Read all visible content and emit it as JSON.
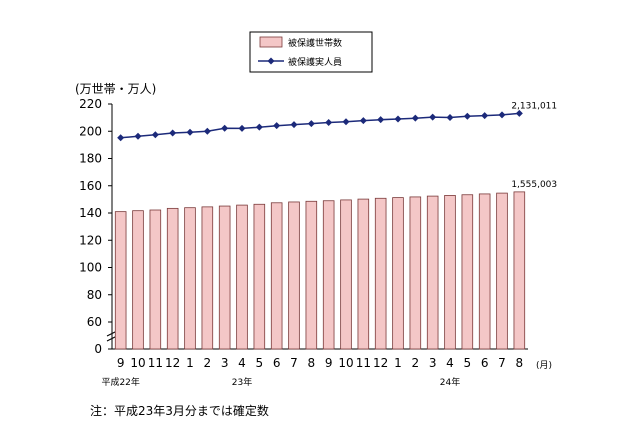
{
  "chart_data": {
    "type": "bar",
    "ylabel": "(万世帯・万人)",
    "ylim": [
      0,
      220
    ],
    "y_ticks": [
      0,
      60,
      80,
      100,
      120,
      140,
      160,
      180,
      200,
      220
    ],
    "axis_break": true,
    "xunit": "(月)",
    "categories": [
      "9",
      "10",
      "11",
      "12",
      "1",
      "2",
      "3",
      "4",
      "5",
      "6",
      "7",
      "8",
      "9",
      "10",
      "11",
      "12",
      "1",
      "2",
      "3",
      "4",
      "5",
      "6",
      "7",
      "8"
    ],
    "era_labels": [
      {
        "text": "平成22年",
        "at_index": 0
      },
      {
        "text": "23年",
        "at_index": 7
      },
      {
        "text": "24年",
        "at_index": 19
      }
    ],
    "series": [
      {
        "name": "被保護世帯数",
        "kind": "bar",
        "color": "#f4c7c7",
        "edge_color": "#7a3a3a",
        "values": [
          141.0,
          141.7,
          142.2,
          143.4,
          143.9,
          144.5,
          145.1,
          145.8,
          146.4,
          147.5,
          148.1,
          148.6,
          149.0,
          149.6,
          150.2,
          150.8,
          151.3,
          151.8,
          152.4,
          152.9,
          153.4,
          154.0,
          154.6,
          155.5
        ]
      },
      {
        "name": "被保護実人員",
        "kind": "line",
        "color": "#1c2a7a",
        "values": [
          195.2,
          196.3,
          197.4,
          198.7,
          199.3,
          200.0,
          202.2,
          202.1,
          203.0,
          204.1,
          204.9,
          205.6,
          206.4,
          207.0,
          207.8,
          208.5,
          209.0,
          209.6,
          210.4,
          210.1,
          211.0,
          211.5,
          212.0,
          213.1
        ]
      }
    ],
    "data_labels": {
      "bar_last": "1,555,003",
      "line_last": "2,131,011"
    },
    "legend_position": "top-center",
    "grid": false
  },
  "note": "注：平成23年3月分までは確定数"
}
